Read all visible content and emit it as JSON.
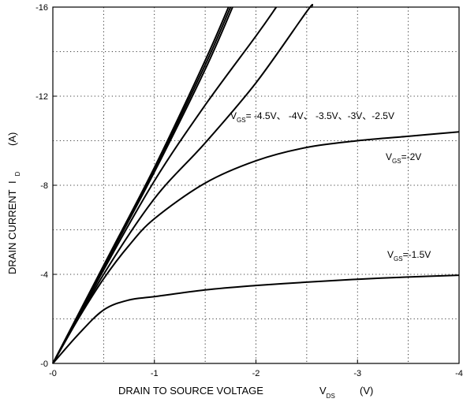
{
  "chart_data": {
    "type": "line",
    "xlabel": "DRAIN TO SOURCE VOLTAGE",
    "xlabel_symbol": "V",
    "xlabel_symbol_sub": "DS",
    "xlabel_unit": "(V)",
    "ylabel": "DRAIN CURRENT",
    "ylabel_symbol": "I",
    "ylabel_symbol_sub": "D",
    "ylabel_unit": "(A)",
    "xlim": [
      0,
      -4
    ],
    "ylim": [
      0,
      -16
    ],
    "x_ticks": [
      0,
      -1,
      -2,
      -3,
      -4
    ],
    "x_tick_labels": [
      "-0",
      "-1",
      "-2",
      "-3",
      "-4"
    ],
    "y_ticks": [
      0,
      -4,
      -8,
      -12,
      -16
    ],
    "y_tick_labels": [
      "-0",
      "-4",
      "-8",
      "-12",
      "-16"
    ],
    "grid": "dotted",
    "annotations": {
      "group": {
        "v": "V",
        "sub": "GS",
        "text": "= -4.5V、 -4V、 -3.5V、-3V、-2.5V"
      },
      "vgs2": {
        "v": "V",
        "sub": "GS",
        "text": "=-2V"
      },
      "vgs15": {
        "v": "V",
        "sub": "GS",
        "text": "=-1.5V"
      }
    },
    "series": [
      {
        "vgs": -4.5,
        "x": [
          0,
          -0.5,
          -1.0,
          -1.5,
          -1.73
        ],
        "y": [
          0,
          -4.4,
          -8.8,
          -13.6,
          -16
        ]
      },
      {
        "vgs": -4.0,
        "x": [
          0,
          -0.5,
          -1.0,
          -1.5,
          -1.75
        ],
        "y": [
          0,
          -4.35,
          -8.7,
          -13.4,
          -16
        ]
      },
      {
        "vgs": -3.5,
        "x": [
          0,
          -0.5,
          -1.0,
          -1.5,
          -1.77
        ],
        "y": [
          0,
          -4.3,
          -8.6,
          -13.2,
          -16
        ]
      },
      {
        "vgs": -3.0,
        "x": [
          0,
          -0.5,
          -1.0,
          -1.5,
          -2.0,
          -2.2
        ],
        "y": [
          0,
          -4.2,
          -8.2,
          -11.6,
          -14.7,
          -16
        ]
      },
      {
        "vgs": -2.5,
        "x": [
          0,
          -0.5,
          -1.0,
          -1.5,
          -2.0,
          -2.5,
          -2.55
        ],
        "y": [
          0,
          -4.0,
          -7.4,
          -9.9,
          -12.6,
          -15.8,
          -16
        ]
      },
      {
        "vgs": -2.0,
        "x": [
          0,
          -0.25,
          -0.5,
          -0.75,
          -1.0,
          -1.5,
          -2.0,
          -2.5,
          -3.0,
          -3.5,
          -4.0
        ],
        "y": [
          0,
          -2.0,
          -3.8,
          -5.3,
          -6.5,
          -8.1,
          -9.1,
          -9.7,
          -10.0,
          -10.2,
          -10.4
        ]
      },
      {
        "vgs": -1.5,
        "x": [
          0,
          -0.25,
          -0.5,
          -0.75,
          -1.0,
          -1.5,
          -2.0,
          -2.5,
          -3.0,
          -3.5,
          -4.0
        ],
        "y": [
          0,
          -1.3,
          -2.4,
          -2.85,
          -3.0,
          -3.3,
          -3.5,
          -3.65,
          -3.78,
          -3.88,
          -3.96
        ]
      }
    ]
  }
}
